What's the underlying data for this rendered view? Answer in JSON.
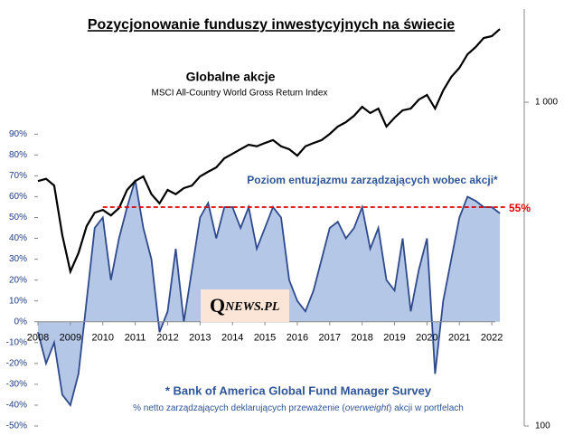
{
  "chart_data": {
    "type": "area-line",
    "title": "Pozycjonowanie funduszy inwestycyjnych na świecie",
    "line_title": "Globalne  akcje",
    "line_subtitle": "MSCI All-Country World Gross Return Index",
    "area_title": "Poziom entuzjazmu zarządzających wobec akcji*",
    "source": "* Bank of America Global Fund Manager Survey",
    "note": [
      "% netto  zarządzających deklarujących przeważenie (",
      "overweight",
      ")  akcji w portfelach"
    ],
    "logo": [
      "Q",
      "NEWS.PL"
    ],
    "x": [
      2008,
      2008.25,
      2008.5,
      2008.75,
      2009,
      2009.25,
      2009.5,
      2009.75,
      2010,
      2010.25,
      2010.5,
      2010.75,
      2011,
      2011.25,
      2011.5,
      2011.75,
      2012,
      2012.25,
      2012.5,
      2012.75,
      2013,
      2013.25,
      2013.5,
      2013.75,
      2014,
      2014.25,
      2014.5,
      2014.75,
      2015,
      2015.25,
      2015.5,
      2015.75,
      2016,
      2016.25,
      2016.5,
      2016.75,
      2017,
      2017.25,
      2017.5,
      2017.75,
      2018,
      2018.25,
      2018.5,
      2018.75,
      2019,
      2019.25,
      2019.5,
      2019.75,
      2020,
      2020.25,
      2020.5,
      2020.75,
      2021,
      2021.25,
      2021.5,
      2021.75,
      2022,
      2022.25
    ],
    "series": [
      {
        "name": "Poziom entuzjazmu",
        "type": "area",
        "color": "#b4c7e7",
        "stroke": "#2f4a8c",
        "values": [
          -5,
          -20,
          -10,
          -35,
          -40,
          -25,
          10,
          45,
          50,
          20,
          40,
          55,
          68,
          45,
          30,
          -5,
          5,
          35,
          0,
          25,
          50,
          57,
          40,
          55,
          55,
          45,
          55,
          35,
          45,
          55,
          50,
          20,
          10,
          5,
          15,
          30,
          45,
          48,
          40,
          45,
          55,
          35,
          45,
          20,
          15,
          40,
          5,
          25,
          40,
          -25,
          10,
          30,
          50,
          60,
          58,
          55,
          55,
          52
        ]
      },
      {
        "name": "MSCI ACWI",
        "type": "line",
        "axis": "y2",
        "color": "#000000",
        "values": [
          571,
          580,
          553,
          389,
          300,
          342,
          414,
          456,
          465,
          447,
          471,
          536,
          571,
          590,
          520,
          487,
          536,
          520,
          543,
          553,
          590,
          610,
          629,
          671,
          693,
          716,
          739,
          731,
          748,
          764,
          731,
          716,
          684,
          731,
          748,
          764,
          798,
          841,
          868,
          908,
          968,
          926,
          956,
          841,
          896,
          944,
          956,
          1019,
          1053,
          956,
          1087,
          1197,
          1277,
          1406,
          1480,
          1579,
          1600,
          1683
        ]
      }
    ],
    "threshold": {
      "value": 55,
      "label": "55%",
      "color": "#e00000"
    },
    "xlim": [
      2008,
      2023
    ],
    "xticks": [
      2008,
      2009,
      2010,
      2011,
      2012,
      2013,
      2014,
      2015,
      2016,
      2017,
      2018,
      2019,
      2020,
      2021,
      2022
    ],
    "ylim": [
      -50,
      150
    ],
    "yticks": [
      {
        "value": -50,
        "label": "-50%"
      },
      {
        "value": -40,
        "label": "-40%"
      },
      {
        "value": -30,
        "label": "-30%"
      },
      {
        "value": -20,
        "label": "-20%"
      },
      {
        "value": -10,
        "label": "-10%"
      },
      {
        "value": 0,
        "label": "0%"
      },
      {
        "value": 10,
        "label": "10%"
      },
      {
        "value": 20,
        "label": "20%"
      },
      {
        "value": 30,
        "label": "30%"
      },
      {
        "value": 40,
        "label": "40%"
      },
      {
        "value": 50,
        "label": "50%"
      },
      {
        "value": 60,
        "label": "60%"
      },
      {
        "value": 70,
        "label": "70%"
      },
      {
        "value": 80,
        "label": "80%"
      },
      {
        "value": 90,
        "label": "90%"
      }
    ],
    "y2lim": [
      100,
      1940
    ],
    "y2log": true,
    "y2ticks": [
      {
        "value": 1000,
        "label": "1 000"
      },
      100
    ]
  }
}
